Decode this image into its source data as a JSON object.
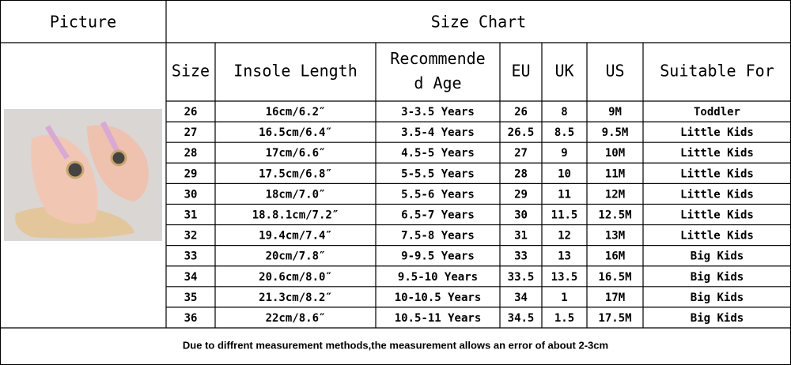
{
  "header": {
    "picture": "Picture",
    "title": "Size Chart"
  },
  "table": {
    "columns": [
      [
        "Size"
      ],
      [
        "Insole Length"
      ],
      [
        "Recommende",
        "d Age"
      ],
      [
        "EU"
      ],
      [
        "UK"
      ],
      [
        "US"
      ],
      [
        "Suitable For"
      ]
    ],
    "rows": [
      [
        "26",
        "16cm/6.2″",
        "3-3.5 Years",
        "26",
        "8",
        "9M",
        "Toddler"
      ],
      [
        "27",
        "16.5cm/6.4″",
        "3.5-4 Years",
        "26.5",
        "8.5",
        "9.5M",
        "Little Kids"
      ],
      [
        "28",
        "17cm/6.6″",
        "4.5-5 Years",
        "27",
        "9",
        "10M",
        "Little Kids"
      ],
      [
        "29",
        "17.5cm/6.8″",
        "5-5.5 Years",
        "28",
        "10",
        "11M",
        "Little Kids"
      ],
      [
        "30",
        "18cm/7.0″",
        "5.5-6 Years",
        "29",
        "11",
        "12M",
        "Little Kids"
      ],
      [
        "31",
        "18.8.1cm/7.2″",
        "6.5-7 Years",
        "30",
        "11.5",
        "12.5M",
        "Little Kids"
      ],
      [
        "32",
        "19.4cm/7.4″",
        "7.5-8 Years",
        "31",
        "12",
        "13M",
        "Little Kids"
      ],
      [
        "33",
        "20cm/7.8″",
        "9-9.5 Years",
        "33",
        "13",
        "16M",
        "Big Kids"
      ],
      [
        "34",
        "20.6cm/8.0″",
        "9.5-10 Years",
        "33.5",
        "13.5",
        "16.5M",
        "Big Kids"
      ],
      [
        "35",
        "21.3cm/8.2″",
        "10-10.5 Years",
        "34",
        "1",
        "17M",
        "Big Kids"
      ],
      [
        "36",
        "22cm/8.6″",
        "10.5-11 Years",
        "34.5",
        "1.5",
        "17.5M",
        "Big Kids"
      ]
    ]
  },
  "footer": "Due to diffrent measurement methods,the measurement allows an error of about 2-3cm"
}
